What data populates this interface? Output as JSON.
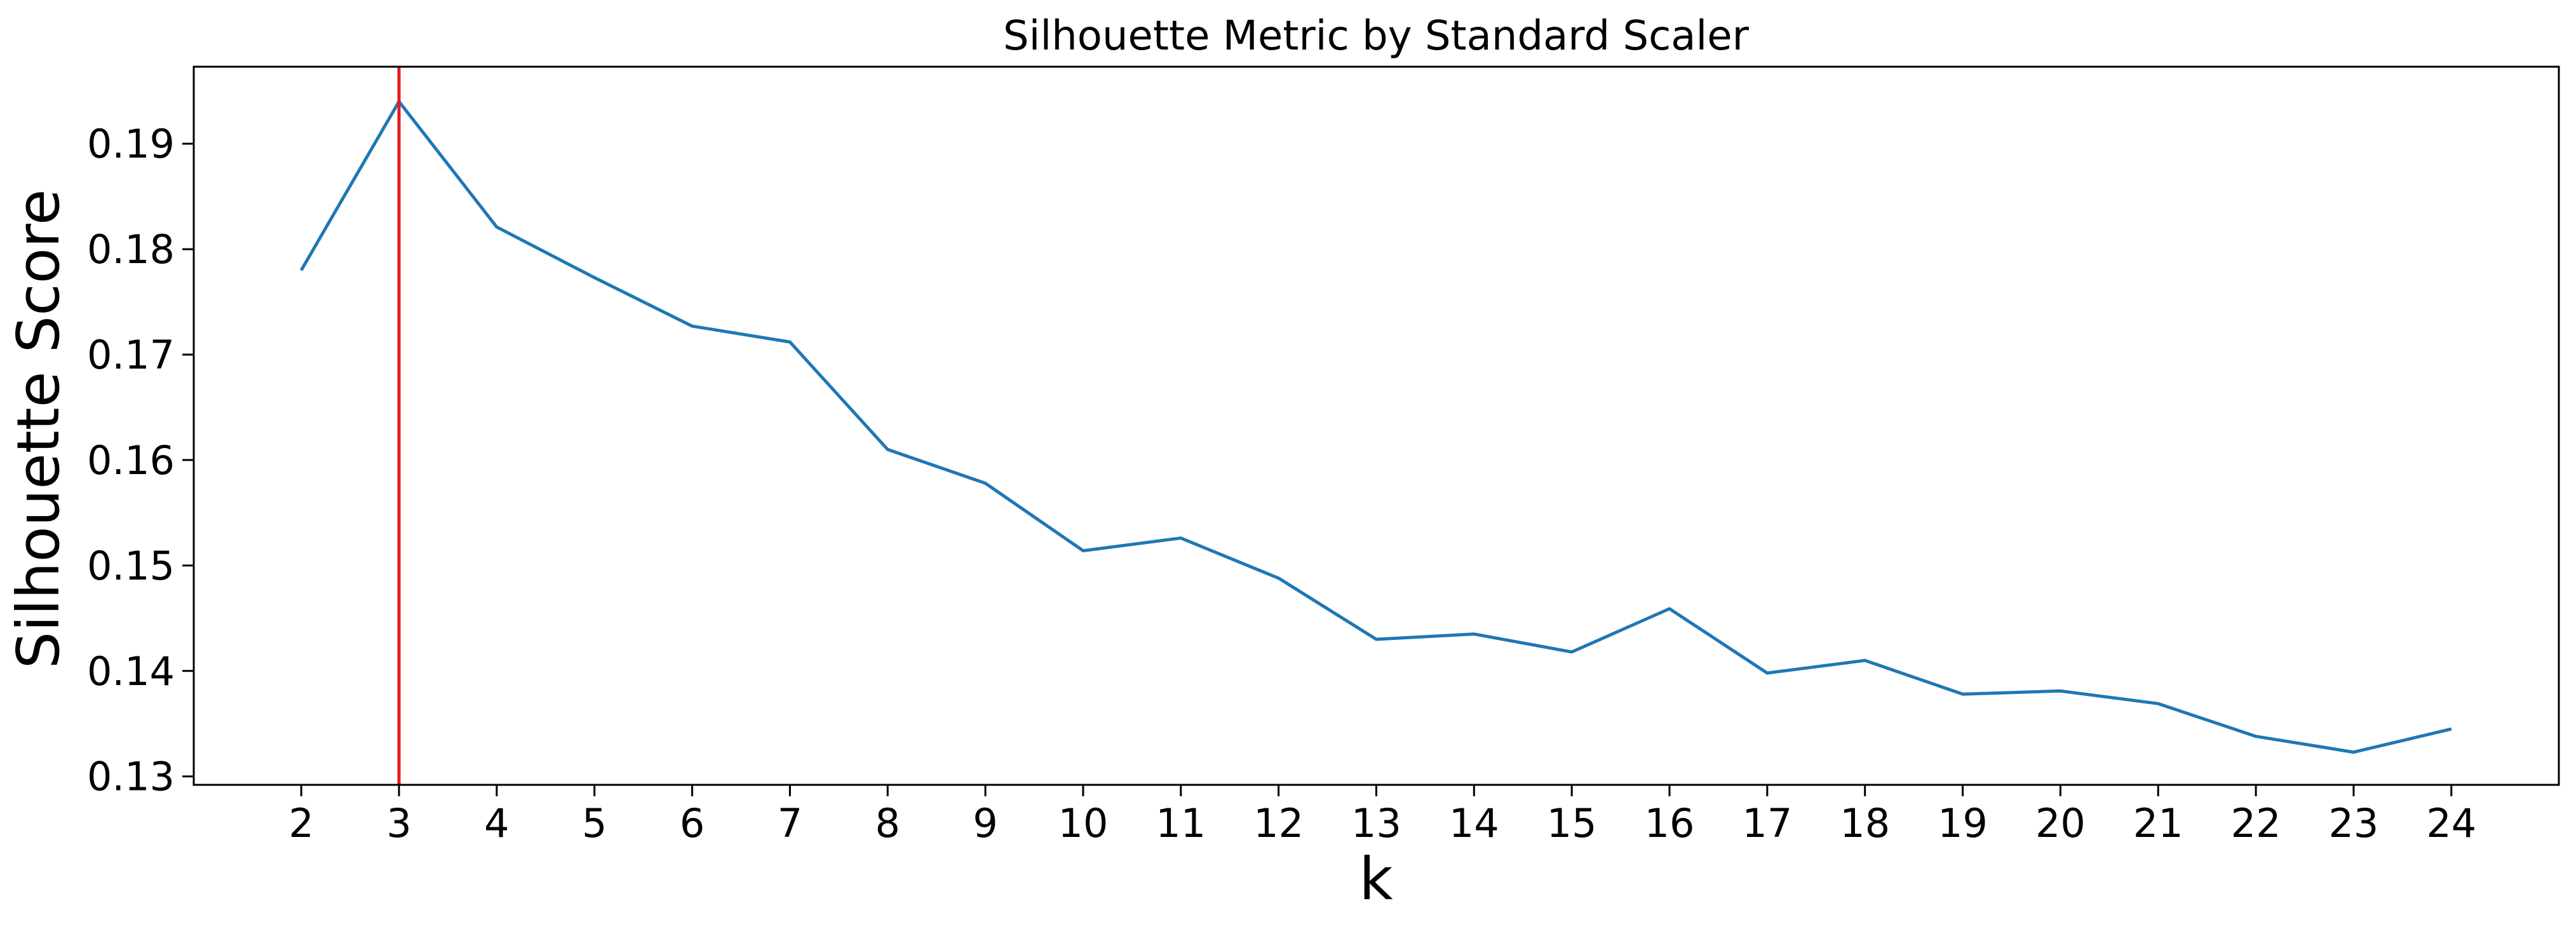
{
  "chart_data": {
    "type": "line",
    "title": "Silhouette Metric by Standard Scaler",
    "xlabel": "k",
    "ylabel": "Silhouette Score",
    "x": [
      2,
      3,
      4,
      5,
      6,
      7,
      8,
      9,
      10,
      11,
      12,
      13,
      14,
      15,
      16,
      17,
      18,
      19,
      20,
      21,
      22,
      23,
      24
    ],
    "series": [
      {
        "values": [
          0.178,
          0.194,
          0.1821,
          0.1773,
          0.1727,
          0.1712,
          0.161,
          0.1578,
          0.1514,
          0.1526,
          0.1488,
          0.143,
          0.1435,
          0.1418,
          0.1459,
          0.1398,
          0.141,
          0.1378,
          0.1381,
          0.1369,
          0.1338,
          0.1323,
          0.1345
        ],
        "color": "#1f77b4"
      }
    ],
    "vline": {
      "x": 3,
      "color": "#e41a1c"
    },
    "xlim": [
      0.9,
      25.1
    ],
    "ylim": [
      0.1292,
      0.1973
    ],
    "xticks": [
      "2",
      "3",
      "4",
      "5",
      "6",
      "7",
      "8",
      "9",
      "10",
      "11",
      "12",
      "13",
      "14",
      "15",
      "16",
      "17",
      "18",
      "19",
      "20",
      "21",
      "22",
      "23",
      "24"
    ],
    "yticks": [
      "0.13",
      "0.14",
      "0.15",
      "0.16",
      "0.17",
      "0.18",
      "0.19"
    ],
    "grid": false,
    "legend": "none"
  }
}
